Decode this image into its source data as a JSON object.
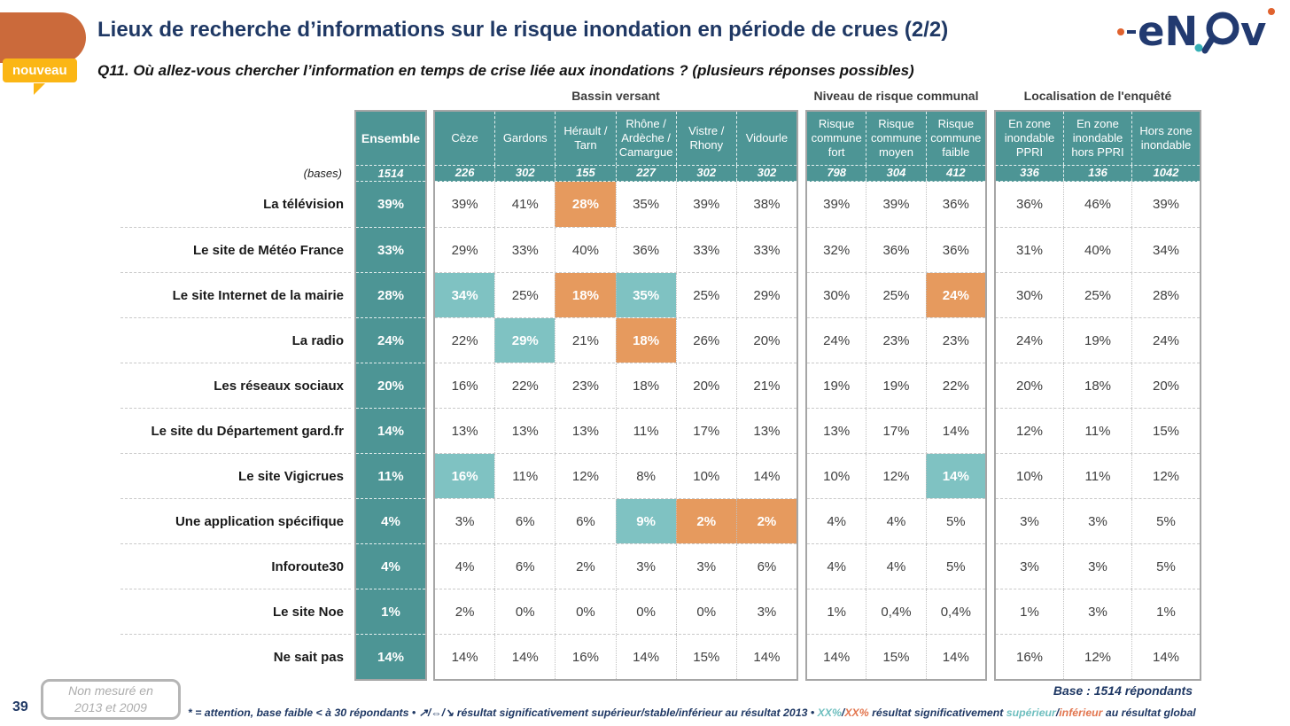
{
  "header": {
    "title": "Lieux de recherche d’informations sur le risque inondation en période de crues (2/2)",
    "subtitle": "Q11. Où allez-vous chercher l’information en temps de crise liée aux inondations ? (plusieurs réponses possibles)",
    "badge": "nouveau",
    "logo_alt": "enov"
  },
  "chart_data": {
    "type": "table",
    "bases_label": "(bases)",
    "ensemble": {
      "label": "Ensemble",
      "base": "1514"
    },
    "groups": [
      {
        "title": "Bassin versant",
        "columns": [
          {
            "label": "Cèze",
            "base": "226"
          },
          {
            "label": "Gardons",
            "base": "302"
          },
          {
            "label": "Hérault / Tarn",
            "base": "155"
          },
          {
            "label": "Rhône / Ardèche / Camargue",
            "base": "227"
          },
          {
            "label": "Vistre / Rhony",
            "base": "302"
          },
          {
            "label": "Vidourle",
            "base": "302"
          }
        ]
      },
      {
        "title": "Niveau de risque communal",
        "columns": [
          {
            "label": "Risque commune fort",
            "base": "798"
          },
          {
            "label": "Risque commune moyen",
            "base": "304"
          },
          {
            "label": "Risque commune faible",
            "base": "412"
          }
        ]
      },
      {
        "title": "Localisation de l'enquêté",
        "columns": [
          {
            "label": "En zone inondable PPRI",
            "base": "336"
          },
          {
            "label": "En zone inondable hors PPRI",
            "base": "136"
          },
          {
            "label": "Hors zone inondable",
            "base": "1042"
          }
        ]
      }
    ],
    "rows": [
      {
        "label": "La télévision",
        "ensemble": "39%",
        "values": [
          "39%",
          "41%",
          "28%",
          "35%",
          "39%",
          "38%",
          "39%",
          "39%",
          "36%",
          "36%",
          "46%",
          "39%"
        ],
        "marks": [
          "",
          "",
          "lo",
          "",
          "",
          "",
          "",
          "",
          "",
          "",
          "",
          ""
        ]
      },
      {
        "label": "Le site de Météo France",
        "ensemble": "33%",
        "values": [
          "29%",
          "33%",
          "40%",
          "36%",
          "33%",
          "33%",
          "32%",
          "36%",
          "36%",
          "31%",
          "40%",
          "34%"
        ],
        "marks": [
          "",
          "",
          "",
          "",
          "",
          "",
          "",
          "",
          "",
          "",
          "",
          ""
        ]
      },
      {
        "label": "Le site Internet de la mairie",
        "ensemble": "28%",
        "values": [
          "34%",
          "25%",
          "18%",
          "35%",
          "25%",
          "29%",
          "30%",
          "25%",
          "24%",
          "30%",
          "25%",
          "28%"
        ],
        "marks": [
          "hi",
          "",
          "lo",
          "hi",
          "",
          "",
          "",
          "",
          "lo",
          "",
          "",
          ""
        ]
      },
      {
        "label": "La radio",
        "ensemble": "24%",
        "values": [
          "22%",
          "29%",
          "21%",
          "18%",
          "26%",
          "20%",
          "24%",
          "23%",
          "23%",
          "24%",
          "19%",
          "24%"
        ],
        "marks": [
          "",
          "hi",
          "",
          "lo",
          "",
          "",
          "",
          "",
          "",
          "",
          "",
          ""
        ]
      },
      {
        "label": "Les réseaux sociaux",
        "ensemble": "20%",
        "values": [
          "16%",
          "22%",
          "23%",
          "18%",
          "20%",
          "21%",
          "19%",
          "19%",
          "22%",
          "20%",
          "18%",
          "20%"
        ],
        "marks": [
          "",
          "",
          "",
          "",
          "",
          "",
          "",
          "",
          "",
          "",
          "",
          ""
        ]
      },
      {
        "label": "Le site du Département gard.fr",
        "ensemble": "14%",
        "values": [
          "13%",
          "13%",
          "13%",
          "11%",
          "17%",
          "13%",
          "13%",
          "17%",
          "14%",
          "12%",
          "11%",
          "15%"
        ],
        "marks": [
          "",
          "",
          "",
          "",
          "",
          "",
          "",
          "",
          "",
          "",
          "",
          ""
        ]
      },
      {
        "label": "Le site Vigicrues",
        "ensemble": "11%",
        "values": [
          "16%",
          "11%",
          "12%",
          "8%",
          "10%",
          "14%",
          "10%",
          "12%",
          "14%",
          "10%",
          "11%",
          "12%"
        ],
        "marks": [
          "hi",
          "",
          "",
          "",
          "",
          "",
          "",
          "",
          "hi",
          "",
          "",
          ""
        ]
      },
      {
        "label": "Une application spécifique",
        "ensemble": "4%",
        "values": [
          "3%",
          "6%",
          "6%",
          "9%",
          "2%",
          "2%",
          "4%",
          "4%",
          "5%",
          "3%",
          "3%",
          "5%"
        ],
        "marks": [
          "",
          "",
          "",
          "hi",
          "lo",
          "lo",
          "",
          "",
          "",
          "",
          "",
          ""
        ]
      },
      {
        "label": "Inforoute30",
        "ensemble": "4%",
        "values": [
          "4%",
          "6%",
          "2%",
          "3%",
          "3%",
          "6%",
          "4%",
          "4%",
          "5%",
          "3%",
          "3%",
          "5%"
        ],
        "marks": [
          "",
          "",
          "",
          "",
          "",
          "",
          "",
          "",
          "",
          "",
          "",
          ""
        ]
      },
      {
        "label": "Le site Noe",
        "ensemble": "1%",
        "values": [
          "2%",
          "0%",
          "0%",
          "0%",
          "0%",
          "3%",
          "1%",
          "0,4%",
          "0,4%",
          "1%",
          "3%",
          "1%"
        ],
        "marks": [
          "",
          "",
          "",
          "",
          "",
          "",
          "",
          "",
          "",
          "",
          "",
          ""
        ]
      },
      {
        "label": "Ne sait pas",
        "ensemble": "14%",
        "values": [
          "14%",
          "14%",
          "16%",
          "14%",
          "15%",
          "14%",
          "14%",
          "15%",
          "14%",
          "16%",
          "12%",
          "14%"
        ],
        "marks": [
          "",
          "",
          "",
          "",
          "",
          "",
          "",
          "",
          "",
          "",
          "",
          ""
        ]
      }
    ]
  },
  "footer": {
    "page_number": "39",
    "note": "Non mesuré en 2013 et 2009",
    "base_line": "Base : 1514 répondants",
    "legend_segments": [
      {
        "text": "* = attention, base faible < à 30 répondants • ↗/⇔/↘ résultat significativement supérieur/stable/inférieur au résultat 2013 • ",
        "color": "navy"
      },
      {
        "text": "XX%",
        "color": "teal"
      },
      {
        "text": "/",
        "color": "navy"
      },
      {
        "text": "XX%",
        "color": "orange"
      },
      {
        "text": " résultat significativement ",
        "color": "navy"
      },
      {
        "text": "supérieur",
        "color": "teal"
      },
      {
        "text": "/",
        "color": "navy"
      },
      {
        "text": "inférieur",
        "color": "orange"
      },
      {
        "text": " au résultat global",
        "color": "navy"
      }
    ]
  },
  "colors": {
    "teal": "#4D9595",
    "teal_light": "#7FC2C2",
    "orange_cell": "#E69A5E",
    "navy": "#1F3864",
    "accent_orange": "#CB6A3B",
    "badge_yellow": "#FBB615"
  }
}
